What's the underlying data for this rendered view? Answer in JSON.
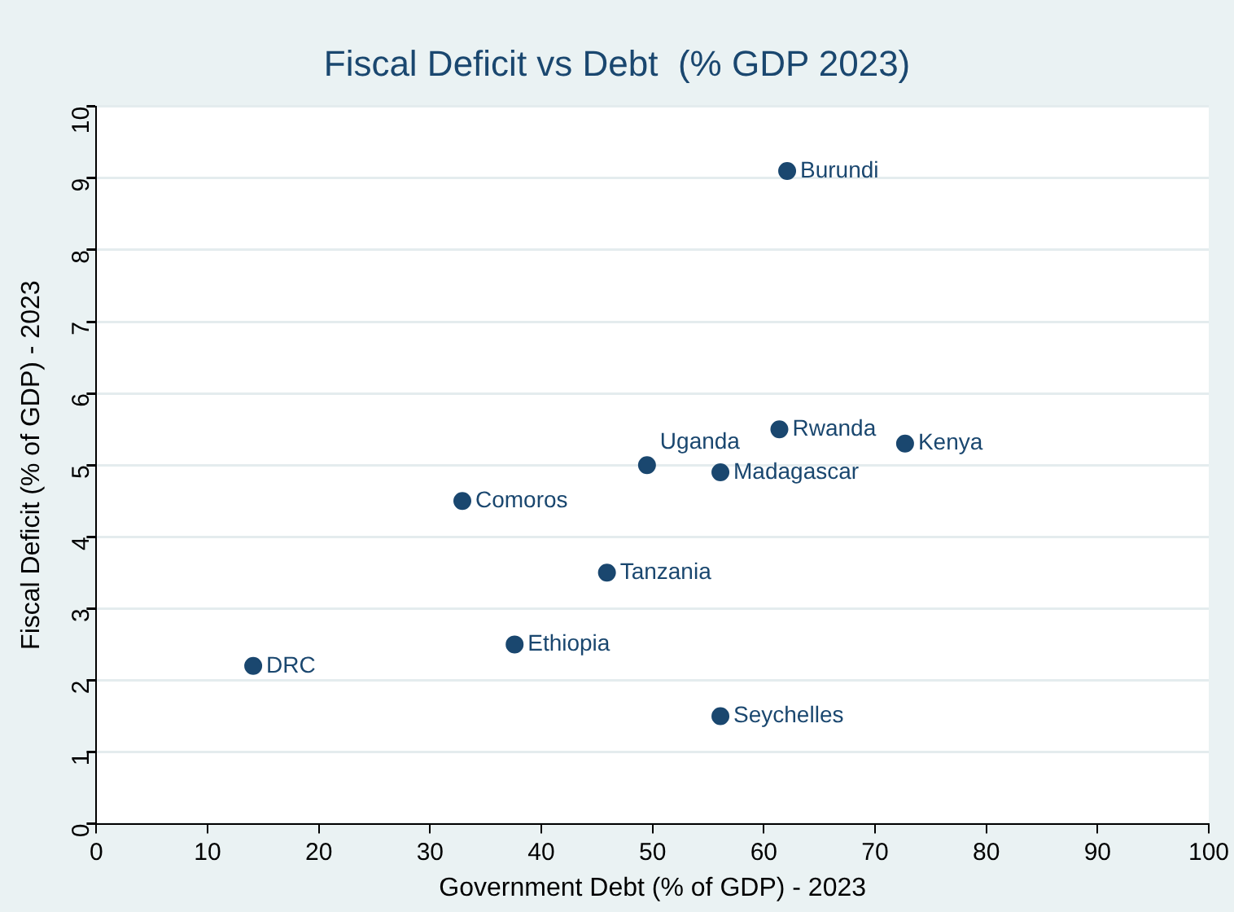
{
  "chart_data": {
    "type": "scatter",
    "title": "Fiscal Deficit vs Debt  (% GDP 2023)",
    "xlabel": "Government Debt (% of GDP) - 2023",
    "ylabel": "Fiscal Deficit (% of GDP) - 2023",
    "series": [
      {
        "color": "#1a476f",
        "x": [
          62.1,
          61.4,
          72.7,
          49.5,
          56.1,
          32.9,
          45.9,
          37.6,
          14.1,
          56.1
        ],
        "values": [
          9.1,
          5.5,
          5.3,
          5.0,
          4.9,
          4.5,
          3.5,
          2.5,
          2.2,
          1.5
        ]
      }
    ],
    "annotations": [
      {
        "text": "Burundi",
        "x": 62.1,
        "y": 9.1
      },
      {
        "text": "Rwanda",
        "x": 61.4,
        "y": 5.5
      },
      {
        "text": "Kenya",
        "x": 72.7,
        "y": 5.3
      },
      {
        "text": "Uganda",
        "x": 49.5,
        "y": 5.0
      },
      {
        "text": "Madagascar",
        "x": 56.1,
        "y": 4.9
      },
      {
        "text": "Comoros",
        "x": 32.9,
        "y": 4.5
      },
      {
        "text": "Tanzania",
        "x": 45.9,
        "y": 3.5
      },
      {
        "text": "Ethiopia",
        "x": 37.6,
        "y": 2.5
      },
      {
        "text": "DRC",
        "x": 14.1,
        "y": 2.2
      },
      {
        "text": "Seychelles",
        "x": 56.1,
        "y": 1.5
      }
    ],
    "xlim": [
      0,
      100
    ],
    "xticks": [
      0,
      10,
      20,
      30,
      40,
      50,
      60,
      70,
      80,
      90,
      100
    ],
    "ylim": [
      0,
      10
    ],
    "yticks": [
      0,
      1,
      2,
      3,
      4,
      5,
      6,
      7,
      8,
      9,
      10
    ],
    "grid": "y",
    "marker": "circle",
    "legend": false
  }
}
